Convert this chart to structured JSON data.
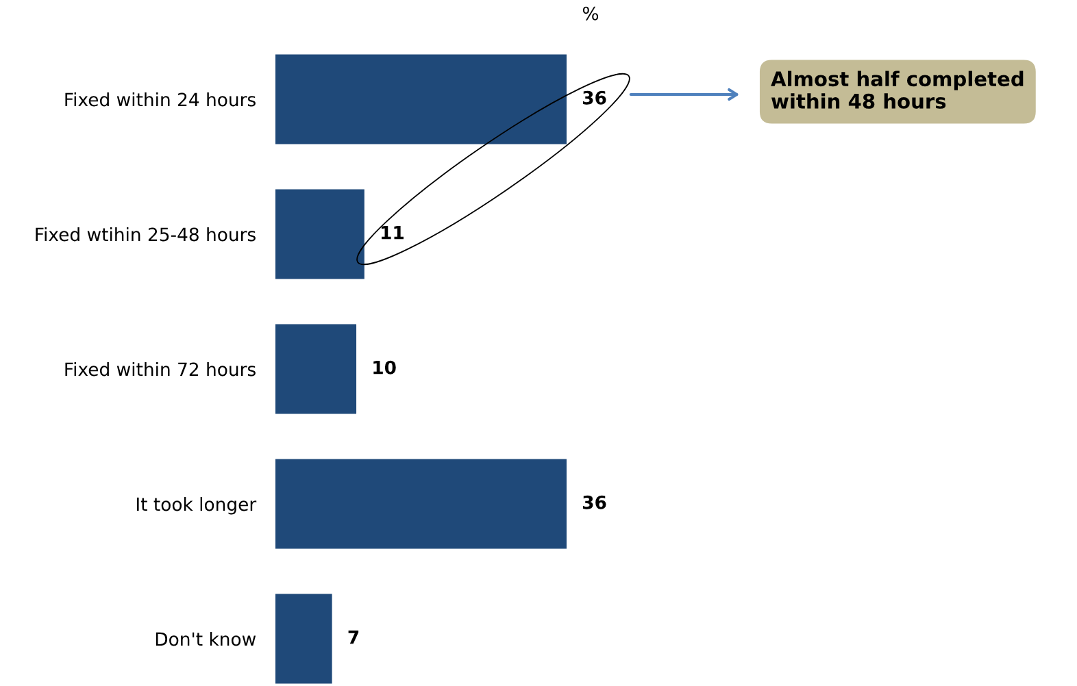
{
  "chart_data": {
    "type": "bar",
    "orientation": "horizontal",
    "title": "%",
    "categories": [
      "Fixed within 24 hours",
      "Fixed wtihin 25-48 hours",
      "Fixed within 72 hours",
      "It took longer",
      "Don't know"
    ],
    "values": [
      36,
      11,
      10,
      36,
      7
    ],
    "color": "#1f4979",
    "data_labels": true,
    "grid": false,
    "annotations": [
      "Almost half completed within 48 hours"
    ]
  }
}
